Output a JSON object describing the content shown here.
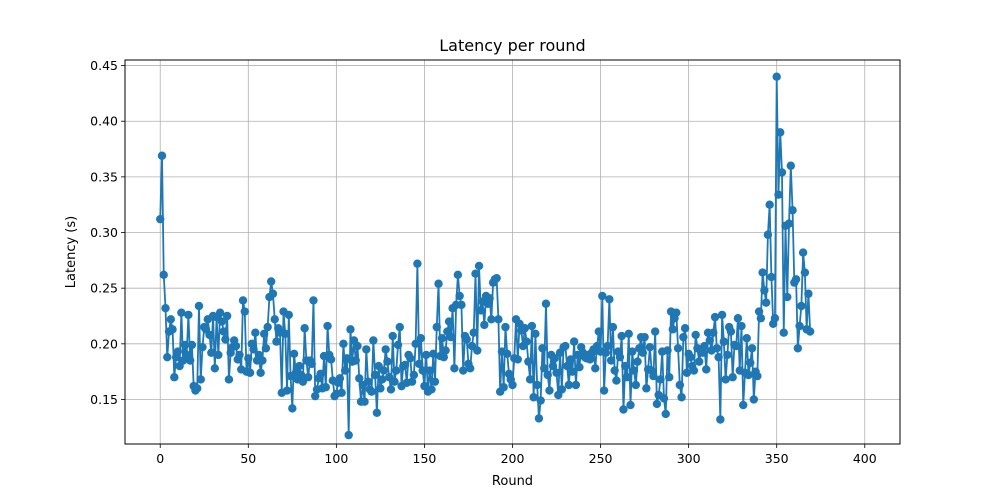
{
  "chart_data": {
    "type": "line",
    "title": "Latency per round",
    "xlabel": "Round",
    "ylabel": "Latency (s)",
    "xlim": [
      -20,
      420
    ],
    "ylim": [
      0.11,
      0.455
    ],
    "grid": true,
    "legend": "none",
    "marker": "circle",
    "series_color": "#1f77b4",
    "x_ticks": [
      {
        "value": 0,
        "label": "0"
      },
      {
        "value": 50,
        "label": "50"
      },
      {
        "value": 100,
        "label": "100"
      },
      {
        "value": 150,
        "label": "150"
      },
      {
        "value": 200,
        "label": "200"
      },
      {
        "value": 250,
        "label": "250"
      },
      {
        "value": 300,
        "label": "300"
      },
      {
        "value": 350,
        "label": "350"
      },
      {
        "value": 400,
        "label": "400"
      }
    ],
    "y_ticks": [
      {
        "value": 0.15,
        "label": "0.15"
      },
      {
        "value": 0.2,
        "label": "0.20"
      },
      {
        "value": 0.25,
        "label": "0.25"
      },
      {
        "value": 0.3,
        "label": "0.30"
      },
      {
        "value": 0.35,
        "label": "0.35"
      },
      {
        "value": 0.4,
        "label": "0.40"
      },
      {
        "value": 0.45,
        "label": "0.45"
      }
    ],
    "series": [
      {
        "name": "latency",
        "values": [
          0.312,
          0.369,
          0.262,
          0.232,
          0.188,
          0.211,
          0.222,
          0.213,
          0.17,
          0.188,
          0.193,
          0.18,
          0.228,
          0.185,
          0.199,
          0.19,
          0.226,
          0.185,
          0.199,
          0.162,
          0.158,
          0.16,
          0.234,
          0.168,
          0.197,
          0.215,
          0.213,
          0.222,
          0.208,
          0.192,
          0.225,
          0.178,
          0.224,
          0.19,
          0.228,
          0.22,
          0.211,
          0.204,
          0.225,
          0.168,
          0.192,
          0.197,
          0.203,
          0.198,
          0.186,
          0.19,
          0.177,
          0.239,
          0.229,
          0.175,
          0.187,
          0.174,
          0.2,
          0.195,
          0.21,
          0.185,
          0.19,
          0.174,
          0.185,
          0.209,
          0.196,
          0.215,
          0.242,
          0.256,
          0.245,
          0.222,
          0.202,
          0.214,
          0.21,
          0.156,
          0.229,
          0.209,
          0.158,
          0.226,
          0.171,
          0.142,
          0.191,
          0.174,
          0.168,
          0.18,
          0.172,
          0.166,
          0.214,
          0.185,
          0.17,
          0.185,
          0.182,
          0.239,
          0.153,
          0.159,
          0.169,
          0.173,
          0.16,
          0.189,
          0.161,
          0.216,
          0.19,
          0.186,
          0.167,
          0.153,
          0.155,
          0.165,
          0.169,
          0.156,
          0.2,
          0.176,
          0.187,
          0.118,
          0.213,
          0.184,
          0.203,
          0.185,
          0.198,
          0.169,
          0.148,
          0.163,
          0.148,
          0.195,
          0.166,
          0.159,
          0.157,
          0.203,
          0.172,
          0.138,
          0.18,
          0.16,
          0.168,
          0.176,
          0.195,
          0.184,
          0.17,
          0.159,
          0.207,
          0.166,
          0.176,
          0.199,
          0.215,
          0.162,
          0.18,
          0.181,
          0.165,
          0.19,
          0.187,
          0.166,
          0.172,
          0.2,
          0.272,
          0.182,
          0.205,
          0.176,
          0.162,
          0.19,
          0.157,
          0.176,
          0.159,
          0.191,
          0.166,
          0.215,
          0.254,
          0.189,
          0.205,
          0.188,
          0.194,
          0.211,
          0.22,
          0.206,
          0.232,
          0.178,
          0.235,
          0.262,
          0.243,
          0.235,
          0.176,
          0.207,
          0.204,
          0.182,
          0.178,
          0.198,
          0.21,
          0.263,
          0.194,
          0.27,
          0.23,
          0.238,
          0.217,
          0.243,
          0.236,
          0.241,
          0.222,
          0.255,
          0.258,
          0.259,
          0.222,
          0.157,
          0.193,
          0.161,
          0.215,
          0.191,
          0.173,
          0.168,
          0.163,
          0.187,
          0.222,
          0.186,
          0.218,
          0.212,
          0.198,
          0.214,
          0.202,
          0.184,
          0.168,
          0.216,
          0.152,
          0.209,
          0.163,
          0.133,
          0.149,
          0.196,
          0.178,
          0.236,
          0.172,
          0.158,
          0.19,
          0.18,
          0.187,
          0.174,
          0.154,
          0.192,
          0.159,
          0.197,
          0.198,
          0.18,
          0.163,
          0.186,
          0.175,
          0.202,
          0.163,
          0.19,
          0.179,
          0.197,
          0.192,
          0.188,
          0.187,
          0.19,
          0.186,
          0.192,
          0.195,
          0.178,
          0.198,
          0.211,
          0.193,
          0.243,
          0.158,
          0.192,
          0.198,
          0.24,
          0.185,
          0.215,
          0.176,
          0.167,
          0.193,
          0.188,
          0.207,
          0.141,
          0.18,
          0.17,
          0.209,
          0.145,
          0.193,
          0.176,
          0.163,
          0.184,
          0.196,
          0.206,
          0.192,
          0.206,
          0.16,
          0.177,
          0.197,
          0.176,
          0.171,
          0.211,
          0.146,
          0.154,
          0.168,
          0.193,
          0.151,
          0.137,
          0.194,
          0.17,
          0.229,
          0.213,
          0.223,
          0.228,
          0.196,
          0.163,
          0.152,
          0.206,
          0.214,
          0.174,
          0.191,
          0.188,
          0.18,
          0.176,
          0.208,
          0.196,
          0.184,
          0.193,
          0.192,
          0.198,
          0.177,
          0.21,
          0.203,
          0.194,
          0.21,
          0.224,
          0.196,
          0.188,
          0.132,
          0.226,
          0.202,
          0.168,
          0.19,
          0.215,
          0.211,
          0.17,
          0.199,
          0.198,
          0.223,
          0.176,
          0.216,
          0.145,
          0.174,
          0.205,
          0.172,
          0.183,
          0.196,
          0.15,
          0.175,
          0.171,
          0.229,
          0.223,
          0.264,
          0.248,
          0.237,
          0.298,
          0.325,
          0.26,
          0.218,
          0.223,
          0.44,
          0.334,
          0.39,
          0.354,
          0.21,
          0.306,
          0.242,
          0.308,
          0.36,
          0.32,
          0.255,
          0.258,
          0.196,
          0.216,
          0.234,
          0.282,
          0.264,
          0.213,
          0.245,
          0.211
        ]
      }
    ]
  }
}
